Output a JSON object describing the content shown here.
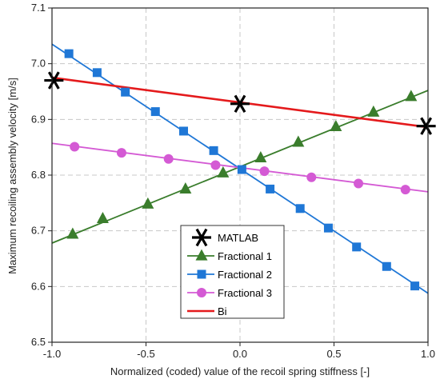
{
  "chart_data": {
    "type": "line",
    "xlabel": "Normalized (coded) value of the recoil spring stiffness [-]",
    "ylabel": "Maximum recoiling assembly velocity [m/s]",
    "xlim": [
      -1.0,
      1.0
    ],
    "ylim": [
      6.5,
      7.1
    ],
    "x_ticks": [
      -1.0,
      -0.5,
      0.0,
      0.5,
      1.0
    ],
    "x_tick_labels": [
      "-1.0",
      "-0.5",
      "0.0",
      "0.5",
      "1.0"
    ],
    "y_ticks": [
      6.5,
      6.6,
      6.7,
      6.8,
      6.9,
      7.0,
      7.1
    ],
    "y_tick_labels": [
      "6.5",
      "6.6",
      "6.7",
      "6.8",
      "6.9",
      "7.0",
      "7.1"
    ],
    "grid": true,
    "legend_position": "bottom-center",
    "series": [
      {
        "name": "MATLAB",
        "marker": "asterisk",
        "color": "#000000",
        "line": false,
        "x": [
          -0.99,
          0.0,
          0.99
        ],
        "y": [
          6.97,
          6.928,
          6.888
        ]
      },
      {
        "name": "Fractional 1",
        "marker": "triangle",
        "color": "#3a7d2c",
        "line": true,
        "line_x": [
          -1.0,
          1.0
        ],
        "line_y": [
          6.678,
          6.952
        ],
        "x": [
          -0.89,
          -0.73,
          -0.49,
          -0.29,
          -0.09,
          0.11,
          0.31,
          0.51,
          0.71,
          0.91
        ],
        "y": [
          6.694,
          6.722,
          6.748,
          6.775,
          6.804,
          6.831,
          6.859,
          6.887,
          6.913,
          6.941
        ]
      },
      {
        "name": "Fractional 2",
        "marker": "square",
        "color": "#1f77d6",
        "line": true,
        "line_x": [
          -1.0,
          1.0
        ],
        "line_y": [
          7.035,
          6.588
        ],
        "x": [
          -0.91,
          -0.76,
          -0.61,
          -0.45,
          -0.3,
          -0.14,
          0.01,
          0.16,
          0.32,
          0.47,
          0.62,
          0.78,
          0.93
        ],
        "y": [
          7.018,
          6.984,
          6.949,
          6.914,
          6.879,
          6.844,
          6.81,
          6.775,
          6.74,
          6.705,
          6.671,
          6.636,
          6.601
        ]
      },
      {
        "name": "Fractional 3",
        "marker": "circle",
        "color": "#d45ad4",
        "line": true,
        "line_x": [
          -1.0,
          1.0
        ],
        "line_y": [
          6.857,
          6.77
        ],
        "x": [
          -0.88,
          -0.63,
          -0.38,
          -0.13,
          0.13,
          0.38,
          0.63,
          0.88
        ],
        "y": [
          6.851,
          6.84,
          6.829,
          6.818,
          6.807,
          6.796,
          6.785,
          6.774
        ]
      },
      {
        "name": "Bi",
        "marker": "none",
        "color": "#e41a1c",
        "line": true,
        "line_x": [
          -1.0,
          1.0
        ],
        "line_y": [
          6.975,
          6.886
        ]
      }
    ]
  }
}
